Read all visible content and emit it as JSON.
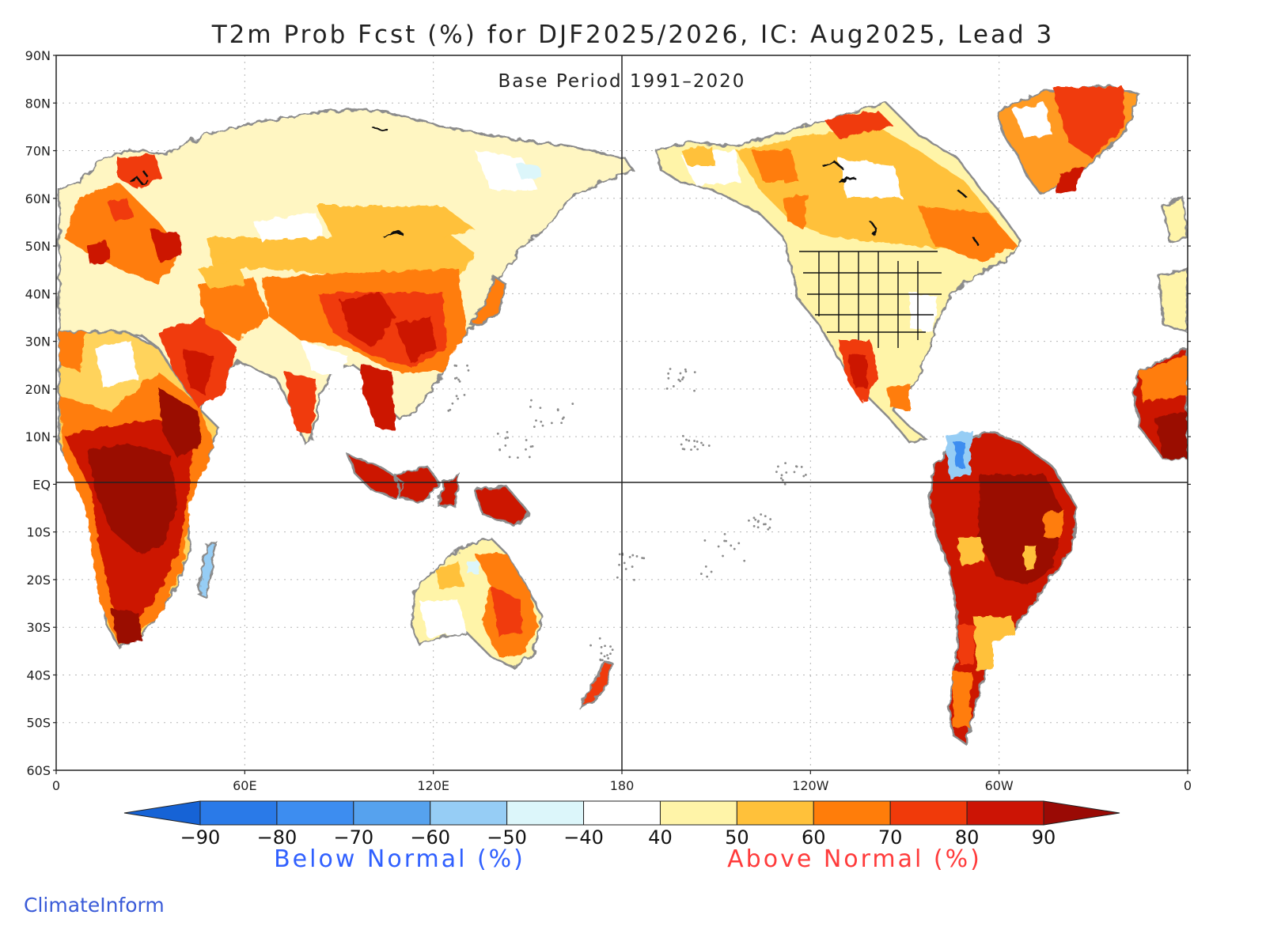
{
  "title": "T2m Prob Fcst (%) for DJF2025/2026, IC: Aug2025, Lead 3",
  "subtitle": "Base Period 1991–2020",
  "y_axis_labels": [
    "90N",
    "80N",
    "70N",
    "60N",
    "50N",
    "40N",
    "30N",
    "20N",
    "10N",
    "EQ",
    "10S",
    "20S",
    "30S",
    "40S",
    "50S",
    "60S"
  ],
  "x_axis_labels": [
    "0",
    "60E",
    "120E",
    "180",
    "120W",
    "60W",
    "0"
  ],
  "colorbar": {
    "tick_labels": [
      "−90",
      "−80",
      "−70",
      "−60",
      "−50",
      "−40",
      "40",
      "50",
      "60",
      "70",
      "80",
      "90"
    ],
    "colors": [
      "#1663d6",
      "#2a7ae8",
      "#3d8df0",
      "#56a2ee",
      "#96cdf5",
      "#dcf6fa",
      "#ffffff",
      "#fff4a8",
      "#ffc13a",
      "#ff7d0a",
      "#f03a0a",
      "#cc1405",
      "#9a0a05"
    ],
    "below_label": "Below Normal (%)",
    "above_label": "Above Normal (%)",
    "below_color": "#3060ff",
    "above_color": "#ff3b3b"
  },
  "footer": "ClimateInform",
  "regions": [
    {
      "name": "western-europe",
      "category": "50-60"
    },
    {
      "name": "scandinavia",
      "category": "60-70"
    },
    {
      "name": "eastern-europe",
      "category": "60-70"
    },
    {
      "name": "siberia",
      "category": "40-50"
    },
    {
      "name": "middle-east",
      "category": "70-80"
    },
    {
      "name": "china",
      "category": "70-80"
    },
    {
      "name": "india",
      "category": "70-80"
    },
    {
      "name": "southeast-asia",
      "category": "80-90"
    },
    {
      "name": "maritime-continent",
      "category": "80-90"
    },
    {
      "name": "central-africa",
      "category": ">90"
    },
    {
      "name": "southern-africa",
      "category": "80-90"
    },
    {
      "name": "madagascar",
      "category": "-60 to -50"
    },
    {
      "name": "australia",
      "category": "60-70"
    },
    {
      "name": "new-zealand",
      "category": "70-80"
    },
    {
      "name": "alaska",
      "category": "40-50"
    },
    {
      "name": "canada",
      "category": "50-60"
    },
    {
      "name": "greenland",
      "category": "70-80"
    },
    {
      "name": "united-states",
      "category": "40-50"
    },
    {
      "name": "mexico",
      "category": "70-80"
    },
    {
      "name": "amazon",
      "category": ">90"
    },
    {
      "name": "colombia",
      "category": "-60 to -50"
    },
    {
      "name": "southern-south-america",
      "category": "60-70"
    }
  ]
}
